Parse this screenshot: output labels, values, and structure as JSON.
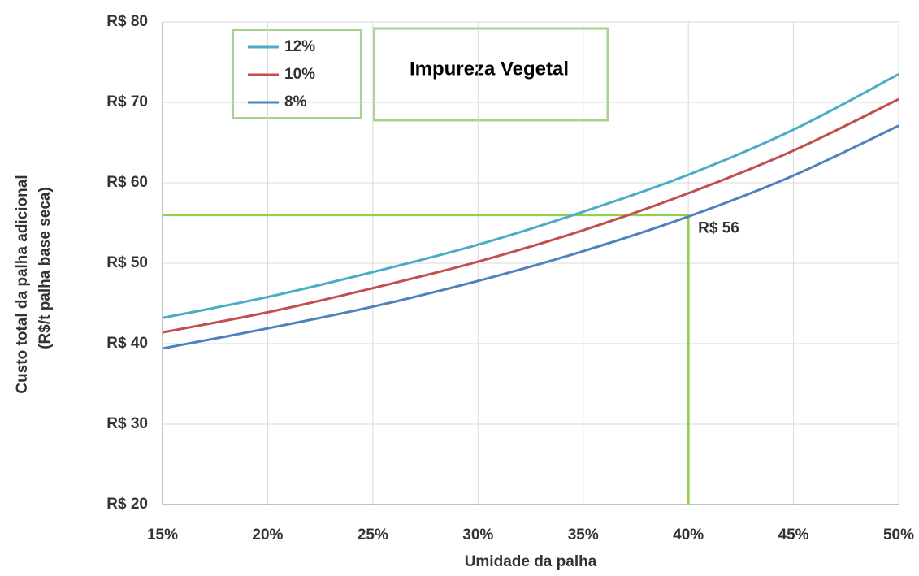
{
  "chart_data": {
    "type": "line",
    "legend_title": "Impureza Vegetal",
    "xlabel": "Umidade da palha",
    "ylabel": [
      "Custo total da palha adicional",
      "(R$/t palha base seca)"
    ],
    "x": [
      15,
      20,
      25,
      30,
      35,
      40,
      45,
      50
    ],
    "series": [
      {
        "name": "12%",
        "color": "#4bacc6",
        "values": [
          43.2,
          45.8,
          48.9,
          52.3,
          56.4,
          61.0,
          66.6,
          73.5
        ]
      },
      {
        "name": "10%",
        "color": "#c0504d",
        "values": [
          41.4,
          43.9,
          46.9,
          50.2,
          54.1,
          58.7,
          64.0,
          70.4
        ]
      },
      {
        "name": "8%",
        "color": "#4f81bd",
        "values": [
          39.4,
          41.9,
          44.6,
          47.8,
          51.5,
          55.8,
          60.9,
          67.1
        ]
      }
    ],
    "xlim": [
      15,
      50
    ],
    "xticks": [
      {
        "value": 15,
        "label": "15%"
      },
      {
        "value": 20,
        "label": "20%"
      },
      {
        "value": 25,
        "label": "25%"
      },
      {
        "value": 30,
        "label": "30%"
      },
      {
        "value": 35,
        "label": "35%"
      },
      {
        "value": 40,
        "label": "40%"
      },
      {
        "value": 45,
        "label": "45%"
      },
      {
        "value": 50,
        "label": "50%"
      }
    ],
    "ylim": [
      20,
      80
    ],
    "yticks": [
      {
        "value": 20,
        "label": "R$ 20"
      },
      {
        "value": 30,
        "label": "R$ 30"
      },
      {
        "value": 40,
        "label": "R$ 40"
      },
      {
        "value": 50,
        "label": "R$ 50"
      },
      {
        "value": 60,
        "label": "R$ 60"
      },
      {
        "value": 70,
        "label": "R$ 70"
      },
      {
        "value": 80,
        "label": "R$ 80"
      }
    ],
    "grid": true,
    "annotation": {
      "text": "R$ 56",
      "x": 40,
      "y": 56,
      "color": "#92d050"
    }
  }
}
